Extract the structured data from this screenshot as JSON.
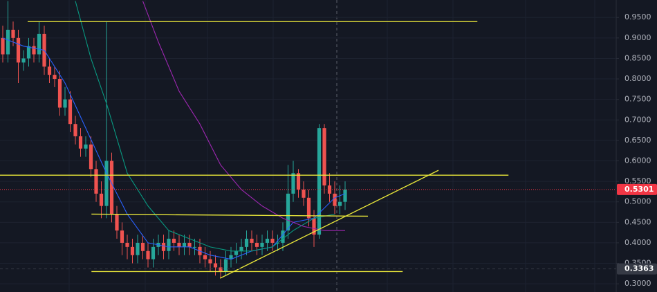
{
  "chart_data": {
    "type": "candlestick",
    "up_color": "#26a69a",
    "down_color": "#ef5350",
    "ylim": [
      0.28,
      0.9926
    ],
    "yticks": [
      {
        "value": 0.3,
        "label": "0.3000"
      },
      {
        "value": 0.35,
        "label": "0.3500"
      },
      {
        "value": 0.4,
        "label": "0.4000"
      },
      {
        "value": 0.45,
        "label": "0.4500"
      },
      {
        "value": 0.5,
        "label": "0.5000"
      },
      {
        "value": 0.55,
        "label": "0.5500"
      },
      {
        "value": 0.6,
        "label": "0.6000"
      },
      {
        "value": 0.65,
        "label": "0.6500"
      },
      {
        "value": 0.7,
        "label": "0.7000"
      },
      {
        "value": 0.75,
        "label": "0.7500"
      },
      {
        "value": 0.8,
        "label": "0.8000"
      },
      {
        "value": 0.85,
        "label": "0.8500"
      },
      {
        "value": 0.9,
        "label": "0.9000"
      },
      {
        "value": 0.95,
        "label": "0.9500"
      }
    ],
    "grid": true,
    "open": [
      0.9,
      0.86,
      0.92,
      0.9,
      0.84,
      0.85,
      0.88,
      0.86,
      0.91,
      0.83,
      0.81,
      0.8,
      0.73,
      0.75,
      0.69,
      0.66,
      0.63,
      0.64,
      0.58,
      0.52,
      0.49,
      0.6,
      0.47,
      0.43,
      0.4,
      0.39,
      0.37,
      0.4,
      0.38,
      0.36,
      0.39,
      0.4,
      0.38,
      0.41,
      0.4,
      0.39,
      0.4,
      0.39,
      0.39,
      0.37,
      0.36,
      0.35,
      0.34,
      0.33,
      0.36,
      0.37,
      0.38,
      0.39,
      0.41,
      0.4,
      0.39,
      0.4,
      0.41,
      0.4,
      0.4,
      0.43,
      0.52,
      0.57,
      0.53,
      0.51,
      0.46,
      0.42,
      0.68,
      0.54,
      0.52,
      0.49,
      0.5
    ],
    "high": [
      0.93,
      0.99,
      0.94,
      0.92,
      0.87,
      0.9,
      0.9,
      0.94,
      0.93,
      0.85,
      0.83,
      0.82,
      0.78,
      0.77,
      0.71,
      0.68,
      0.66,
      0.66,
      0.6,
      0.55,
      0.94,
      0.62,
      0.49,
      0.45,
      0.42,
      0.41,
      0.42,
      0.42,
      0.4,
      0.41,
      0.42,
      0.42,
      0.43,
      0.43,
      0.42,
      0.42,
      0.42,
      0.41,
      0.41,
      0.39,
      0.38,
      0.37,
      0.36,
      0.38,
      0.39,
      0.4,
      0.41,
      0.43,
      0.43,
      0.42,
      0.42,
      0.43,
      0.43,
      0.42,
      0.45,
      0.59,
      0.6,
      0.58,
      0.55,
      0.53,
      0.48,
      0.69,
      0.69,
      0.57,
      0.55,
      0.54,
      0.55
    ],
    "low": [
      0.84,
      0.84,
      0.88,
      0.79,
      0.82,
      0.83,
      0.84,
      0.84,
      0.81,
      0.79,
      0.78,
      0.71,
      0.71,
      0.67,
      0.64,
      0.61,
      0.61,
      0.56,
      0.5,
      0.46,
      0.46,
      0.45,
      0.41,
      0.37,
      0.36,
      0.35,
      0.35,
      0.36,
      0.34,
      0.34,
      0.37,
      0.36,
      0.36,
      0.38,
      0.37,
      0.37,
      0.37,
      0.37,
      0.35,
      0.34,
      0.33,
      0.32,
      0.315,
      0.32,
      0.34,
      0.35,
      0.36,
      0.37,
      0.38,
      0.37,
      0.37,
      0.38,
      0.38,
      0.38,
      0.38,
      0.41,
      0.5,
      0.51,
      0.49,
      0.44,
      0.39,
      0.41,
      0.52,
      0.5,
      0.47,
      0.47,
      0.48
    ],
    "close": [
      0.86,
      0.92,
      0.9,
      0.84,
      0.85,
      0.88,
      0.86,
      0.91,
      0.83,
      0.81,
      0.8,
      0.73,
      0.75,
      0.69,
      0.66,
      0.63,
      0.64,
      0.58,
      0.52,
      0.49,
      0.6,
      0.47,
      0.43,
      0.4,
      0.39,
      0.37,
      0.4,
      0.38,
      0.36,
      0.39,
      0.4,
      0.38,
      0.41,
      0.4,
      0.39,
      0.4,
      0.39,
      0.39,
      0.37,
      0.36,
      0.35,
      0.34,
      0.33,
      0.36,
      0.37,
      0.38,
      0.39,
      0.41,
      0.4,
      0.39,
      0.4,
      0.41,
      0.4,
      0.4,
      0.43,
      0.52,
      0.57,
      0.53,
      0.51,
      0.46,
      0.42,
      0.68,
      0.54,
      0.52,
      0.49,
      0.5,
      0.53
    ],
    "lines": [
      {
        "color": "#2962ff",
        "x": [
          0,
          4,
          8,
          12,
          16,
          20,
          24,
          28,
          32,
          36,
          40,
          44,
          48,
          52,
          56,
          60,
          64,
          66
        ],
        "values": [
          0.9,
          0.88,
          0.87,
          0.79,
          0.68,
          0.57,
          0.47,
          0.4,
          0.39,
          0.39,
          0.37,
          0.36,
          0.38,
          0.39,
          0.45,
          0.46,
          0.51,
          0.52
        ]
      },
      {
        "color": "#089981",
        "x": [
          14,
          17,
          20,
          24,
          28,
          32,
          36,
          40,
          44,
          48,
          52,
          56,
          60,
          64
        ],
        "values": [
          0.99,
          0.85,
          0.74,
          0.57,
          0.49,
          0.43,
          0.41,
          0.39,
          0.38,
          0.38,
          0.39,
          0.43,
          0.46,
          0.47
        ]
      },
      {
        "color": "#9c27b0",
        "x": [
          27,
          30,
          34,
          38,
          42,
          46,
          50,
          54,
          58,
          62,
          66
        ],
        "values": [
          0.99,
          0.89,
          0.77,
          0.69,
          0.59,
          0.53,
          0.49,
          0.46,
          0.44,
          0.43,
          0.43
        ]
      }
    ],
    "levels": [
      {
        "color": "#e8e63a",
        "x": [
          4.8,
          91.5
        ],
        "values": [
          0.94,
          0.94
        ]
      },
      {
        "color": "#e8e63a",
        "x": [
          -0.6,
          97.5
        ],
        "values": [
          0.565,
          0.565
        ]
      },
      {
        "color": "#e8e63a",
        "x": [
          17.1,
          70.4
        ],
        "values": [
          0.47,
          0.465
        ]
      },
      {
        "color": "#e8e63a",
        "x": [
          17.1,
          77.1
        ],
        "values": [
          0.33,
          0.33
        ]
      },
      {
        "color": "#e8e63a",
        "x": [
          41.9,
          84
        ],
        "values": [
          0.3135,
          0.577
        ]
      }
    ],
    "price_labels": [
      {
        "value": 0.5301,
        "label": "0.5301",
        "color": "#f23645"
      },
      {
        "value": 0.3363,
        "label": "0.3363",
        "color": "#363a45"
      }
    ]
  }
}
